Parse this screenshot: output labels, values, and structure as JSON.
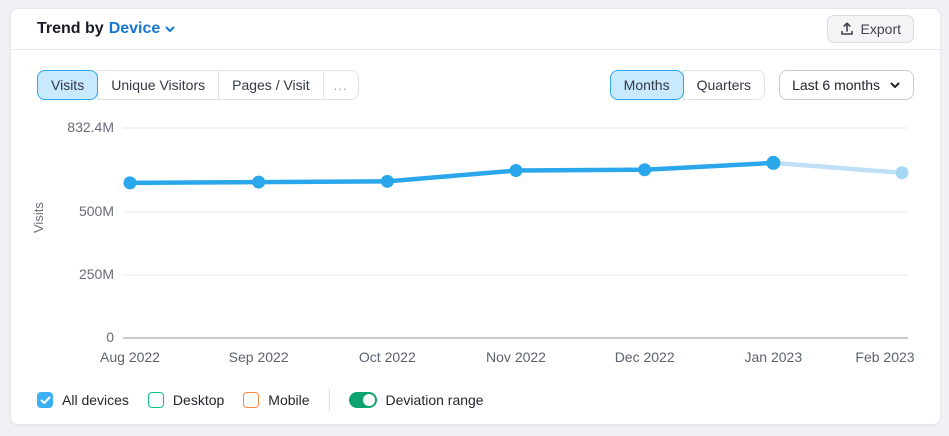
{
  "page": {
    "background": "#eff1f5",
    "card_background": "#ffffff"
  },
  "header": {
    "title_prefix": "Trend by",
    "title_dropdown": "Device",
    "export_label": "Export",
    "link_color": "#1677d2"
  },
  "metric_tabs": [
    {
      "id": "visits",
      "label": "Visits",
      "selected": true
    },
    {
      "id": "unique-visitors",
      "label": "Unique Visitors",
      "selected": false
    },
    {
      "id": "pages-visit",
      "label": "Pages / Visit",
      "selected": false
    },
    {
      "id": "more",
      "label": "...",
      "selected": false,
      "muted": true
    }
  ],
  "period_tabs": [
    {
      "id": "months",
      "label": "Months",
      "selected": true
    },
    {
      "id": "quarters",
      "label": "Quarters",
      "selected": false
    }
  ],
  "range_dropdown": {
    "value": "Last 6 months"
  },
  "chart_data": {
    "type": "line",
    "title": "Trend by Device",
    "ylabel": "Visits",
    "categories": [
      "Aug 2022",
      "Sep 2022",
      "Oct 2022",
      "Nov 2022",
      "Dec 2022",
      "Jan 2023",
      "Feb 2023"
    ],
    "series": [
      {
        "name": "All devices",
        "unit": "M",
        "values": [
          615,
          618,
          621,
          664,
          667,
          694,
          655
        ]
      }
    ],
    "ylim": [
      0,
      832.4
    ],
    "ytick_values": [
      0,
      250,
      500,
      832.4
    ],
    "ytick_labels": [
      "0",
      "250M",
      "500M",
      "832.4M"
    ],
    "grid": "horizontal",
    "legend_position": "bottom",
    "last_segment_muted": true,
    "line_color": "#2aa7ea",
    "muted_line_color": "#bedff8",
    "muted_dot_color": "#a4d6f6"
  },
  "legend": {
    "items": [
      {
        "id": "all-devices",
        "label": "All devices",
        "checked": true,
        "color": "#3cb0f2"
      },
      {
        "id": "desktop",
        "label": "Desktop",
        "checked": false,
        "color": "#10bc8e"
      },
      {
        "id": "mobile",
        "label": "Mobile",
        "checked": false,
        "color": "#f98a43"
      }
    ],
    "toggle": {
      "label": "Deviation range",
      "on": true,
      "color": "#0fa371"
    }
  }
}
